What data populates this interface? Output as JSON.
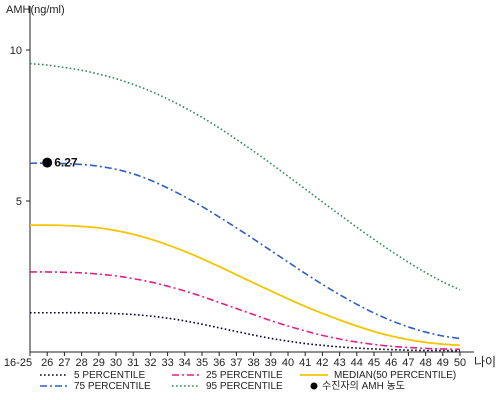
{
  "chart_data": {
    "type": "line",
    "ylabel": "AMH(ng/ml)",
    "xlabel": "나이",
    "x": [
      "16-25",
      "26",
      "27",
      "28",
      "29",
      "30",
      "31",
      "32",
      "33",
      "34",
      "35",
      "36",
      "37",
      "38",
      "39",
      "40",
      "41",
      "42",
      "43",
      "44",
      "45",
      "46",
      "47",
      "48",
      "49",
      "50"
    ],
    "ylim": [
      0,
      11
    ],
    "yticks": [
      5,
      10
    ],
    "grid": false,
    "legend_position": "bottom",
    "series": [
      {
        "name": "5 PERCENTILE",
        "color": "#000033",
        "style": "dotted",
        "values": [
          1.3,
          1.3,
          1.3,
          1.3,
          1.29,
          1.27,
          1.24,
          1.19,
          1.12,
          1.03,
          0.92,
          0.8,
          0.68,
          0.56,
          0.45,
          0.36,
          0.28,
          0.22,
          0.17,
          0.13,
          0.1,
          0.08,
          0.06,
          0.05,
          0.05,
          0.04
        ]
      },
      {
        "name": "75 PERCENTILE",
        "color": "#2f5fc4",
        "style": "dashdot",
        "values": [
          6.25,
          6.25,
          6.24,
          6.21,
          6.15,
          6.05,
          5.9,
          5.69,
          5.43,
          5.14,
          4.82,
          4.47,
          4.11,
          3.74,
          3.36,
          2.98,
          2.6,
          2.24,
          1.9,
          1.58,
          1.29,
          1.04,
          0.83,
          0.66,
          0.53,
          0.45
        ]
      },
      {
        "name": "25 PERCENTILE",
        "color": "#e0218a",
        "style": "dashdot",
        "values": [
          2.65,
          2.65,
          2.64,
          2.62,
          2.58,
          2.52,
          2.43,
          2.32,
          2.18,
          2.02,
          1.84,
          1.64,
          1.44,
          1.24,
          1.04,
          0.86,
          0.7,
          0.55,
          0.43,
          0.33,
          0.25,
          0.19,
          0.15,
          0.12,
          0.1,
          0.09
        ]
      },
      {
        "name": "95 PERCENTILE",
        "color": "#2e8b57",
        "style": "dotted",
        "values": [
          9.55,
          9.5,
          9.42,
          9.33,
          9.2,
          9.05,
          8.86,
          8.64,
          8.38,
          8.09,
          7.77,
          7.42,
          7.04,
          6.65,
          6.24,
          5.82,
          5.4,
          4.97,
          4.55,
          4.13,
          3.73,
          3.34,
          2.97,
          2.63,
          2.32,
          2.06
        ]
      },
      {
        "name": "MEDIAN(50 PERCENTILE)",
        "color": "#f2c500",
        "style": "solid",
        "values": [
          4.2,
          4.2,
          4.19,
          4.16,
          4.11,
          4.02,
          3.9,
          3.74,
          3.55,
          3.33,
          3.09,
          2.83,
          2.56,
          2.29,
          2.02,
          1.76,
          1.51,
          1.28,
          1.06,
          0.86,
          0.68,
          0.53,
          0.41,
          0.32,
          0.26,
          0.22
        ]
      }
    ],
    "annotation": {
      "legend_label": "수진자의 AMH 농도",
      "x": "26",
      "y": 6.27,
      "label": "6.27",
      "color": "#000000"
    }
  }
}
